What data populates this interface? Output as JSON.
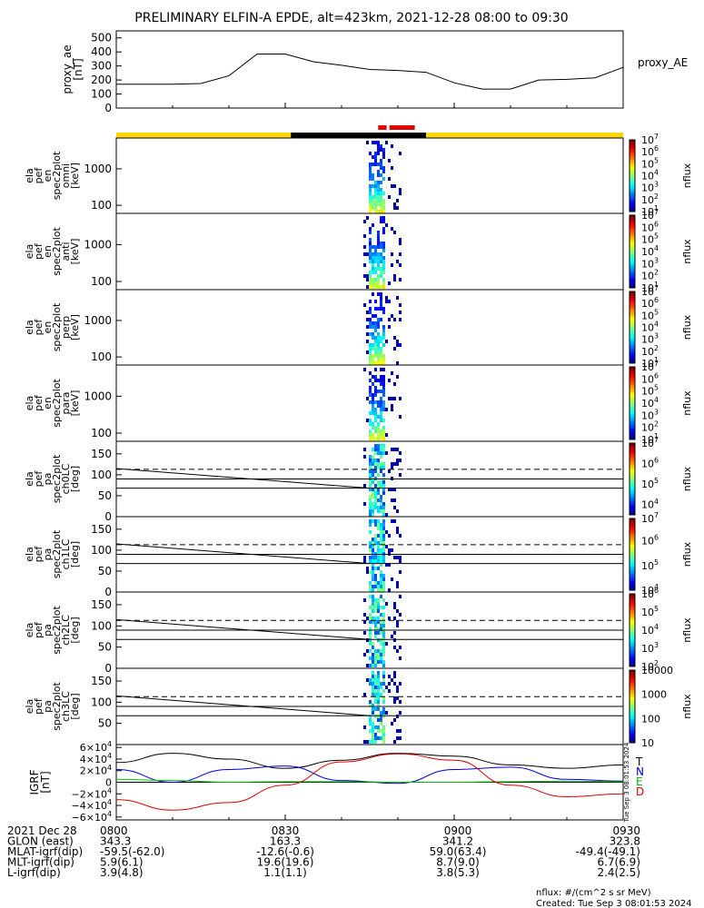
{
  "title": "PRELIMINARY ELFIN-A EPDE, alt=423km, 2021-12-28 08:00 to 09:30",
  "colors": {
    "black": "#000000",
    "red": "#e00000",
    "blue": "#0000e0",
    "green": "#00c000",
    "yellow": "#ffd700"
  },
  "chart_data": [
    {
      "type": "line",
      "panel": "proxy_ae",
      "ylabel": [
        "proxy_ae",
        "[nT]"
      ],
      "legend": "proxy_AE",
      "ylim": [
        0,
        550
      ],
      "yticks": [
        "0",
        "100",
        "200",
        "300",
        "400",
        "500"
      ],
      "ytick_values": [
        0,
        100,
        200,
        300,
        400,
        500
      ],
      "x": [
        0,
        10,
        15,
        20,
        25,
        30,
        35,
        40,
        45,
        50,
        55,
        60,
        65,
        70,
        75,
        80,
        85,
        90
      ],
      "values": [
        170,
        170,
        175,
        230,
        385,
        385,
        330,
        305,
        275,
        268,
        255,
        180,
        135,
        135,
        200,
        205,
        215,
        290
      ]
    },
    {
      "type": "bar",
      "panel": "science_zone_bar",
      "segments": [
        {
          "start": 0,
          "end": 31,
          "color": "#ffd700"
        },
        {
          "start": 31,
          "end": 55,
          "color": "#000000"
        },
        {
          "start": 55,
          "end": 90,
          "color": "#ffd700"
        }
      ],
      "science_markers": [
        {
          "start": 46.5,
          "end": 48.0
        },
        {
          "start": 48.5,
          "end": 53.0
        }
      ]
    },
    {
      "type": "heatmap",
      "panel": "omni",
      "ylabel": [
        "ela",
        "pef",
        "en",
        "spec2plot",
        "omni",
        "[keV]"
      ],
      "yscale": "log",
      "ylim": [
        60,
        7000
      ],
      "yticks": [
        "100",
        "1000"
      ],
      "ytick_values": [
        100,
        1000
      ],
      "colorbar": {
        "label": "nflux",
        "tick_values": [
          1,
          2,
          3,
          4,
          5,
          6,
          7
        ],
        "ticks": [
          "10",
          "10",
          "10",
          "10",
          "10",
          "10",
          "10"
        ],
        "exponents": [
          "1",
          "2",
          "3",
          "4",
          "5",
          "6",
          "7"
        ]
      }
    },
    {
      "type": "heatmap",
      "panel": "anti",
      "ylabel": [
        "ela",
        "pef",
        "en",
        "spec2plot",
        "anti",
        "[keV]"
      ],
      "yscale": "log",
      "ylim": [
        60,
        7000
      ],
      "yticks": [
        "100",
        "1000"
      ],
      "ytick_values": [
        100,
        1000
      ],
      "colorbar": {
        "label": "nflux",
        "tick_values": [
          1,
          2,
          3,
          4,
          5,
          6,
          7
        ],
        "ticks": [
          "10",
          "10",
          "10",
          "10",
          "10",
          "10",
          "10"
        ],
        "exponents": [
          "1",
          "2",
          "3",
          "4",
          "5",
          "6",
          "7"
        ]
      }
    },
    {
      "type": "heatmap",
      "panel": "perp",
      "ylabel": [
        "ela",
        "pef",
        "en",
        "spec2plot",
        "perp",
        "[keV]"
      ],
      "yscale": "log",
      "ylim": [
        60,
        7000
      ],
      "yticks": [
        "100",
        "1000"
      ],
      "ytick_values": [
        100,
        1000
      ],
      "colorbar": {
        "label": "nflux",
        "tick_values": [
          1,
          2,
          3,
          4,
          5,
          6,
          7
        ],
        "ticks": [
          "10",
          "10",
          "10",
          "10",
          "10",
          "10",
          "10"
        ],
        "exponents": [
          "1",
          "2",
          "3",
          "4",
          "5",
          "6",
          "7"
        ]
      }
    },
    {
      "type": "heatmap",
      "panel": "para",
      "ylabel": [
        "ela",
        "pef",
        "en",
        "spec2plot",
        "para",
        "[keV]"
      ],
      "yscale": "log",
      "ylim": [
        60,
        7000
      ],
      "yticks": [
        "100",
        "1000"
      ],
      "ytick_values": [
        100,
        1000
      ],
      "colorbar": {
        "label": "nflux",
        "tick_values": [
          1,
          2,
          3,
          4,
          5,
          6,
          7
        ],
        "ticks": [
          "10",
          "10",
          "10",
          "10",
          "10",
          "10",
          "10"
        ],
        "exponents": [
          "1",
          "2",
          "3",
          "4",
          "5",
          "6",
          "7"
        ]
      }
    },
    {
      "type": "heatmap",
      "panel": "ch0LC",
      "ylabel": [
        "ela",
        "pef",
        "pa",
        "spec2plot",
        "ch0LC",
        "[deg]"
      ],
      "ylim": [
        0,
        180
      ],
      "yticks": [
        "0",
        "50",
        "100",
        "150"
      ],
      "ytick_values": [
        0,
        50,
        100,
        150
      ],
      "colorbar": {
        "label": "nflux",
        "tick_values": [
          3.5,
          4,
          5,
          6,
          7
        ],
        "ticks": [
          "",
          "10",
          "10",
          "10",
          "10"
        ],
        "exponents": [
          "",
          "4",
          "5",
          "6",
          "7"
        ]
      }
    },
    {
      "type": "heatmap",
      "panel": "ch1LC",
      "ylabel": [
        "ela",
        "pef",
        "pa",
        "spec2plot",
        "ch1LC",
        "[deg]"
      ],
      "ylim": [
        0,
        180
      ],
      "yticks": [
        "0",
        "50",
        "100",
        "150"
      ],
      "ytick_values": [
        0,
        50,
        100,
        150
      ],
      "colorbar": {
        "label": "nflux",
        "tick_values": [
          4,
          5,
          6,
          6.9
        ],
        "ticks": [
          "10",
          "10",
          "10",
          "10"
        ],
        "exponents": [
          "4",
          "5",
          "6",
          "7"
        ]
      }
    },
    {
      "type": "heatmap",
      "panel": "ch2LC",
      "ylabel": [
        "ela",
        "pef",
        "pa",
        "spec2plot",
        "ch2LC",
        "[deg]"
      ],
      "ylim": [
        0,
        180
      ],
      "yticks": [
        "0",
        "50",
        "100",
        "150"
      ],
      "ytick_values": [
        0,
        50,
        100,
        150
      ],
      "colorbar": {
        "label": "nflux",
        "tick_values": [
          2,
          3,
          4,
          5,
          6
        ],
        "ticks": [
          "10",
          "10",
          "10",
          "10",
          "10"
        ],
        "exponents": [
          "2",
          "3",
          "4",
          "5",
          "6"
        ]
      }
    },
    {
      "type": "heatmap",
      "panel": "ch3LC",
      "ylabel": [
        "ela",
        "pef",
        "pa",
        "spec2plot",
        "ch3LC",
        "[deg]"
      ],
      "ylim": [
        0,
        180
      ],
      "yticks": [
        "50",
        "100",
        "150"
      ],
      "ytick_values": [
        50,
        100,
        150
      ],
      "colorbar": {
        "label": "nflux",
        "tick_values": [
          1,
          2,
          3,
          4
        ],
        "ticks": [
          "10",
          "100",
          "1000",
          "10000"
        ],
        "exponents": [
          "",
          "",
          "",
          ""
        ]
      }
    },
    {
      "type": "line",
      "panel": "igrf",
      "ylabel": [
        "IGRF",
        "[nT]"
      ],
      "ylim": [
        -65000,
        65000
      ],
      "yticks": [
        "6×10",
        "4×10",
        "2×10",
        "0",
        "−2×10",
        "−4×10",
        "−6×10"
      ],
      "ytick_exponents": [
        "4",
        "4",
        "4",
        "",
        "4",
        "4",
        "4"
      ],
      "ytick_values": [
        60000,
        40000,
        20000,
        0,
        -20000,
        -40000,
        -60000
      ],
      "side_text": "Tue Sep 3 08:01:53 2024",
      "series": [
        {
          "name": "T",
          "color": "#000000",
          "x": [
            0,
            10,
            20,
            30,
            40,
            50,
            60,
            70,
            80,
            90
          ],
          "values": [
            34000,
            50000,
            40000,
            24000,
            38000,
            50000,
            45000,
            30000,
            24000,
            30000
          ]
        },
        {
          "name": "N",
          "color": "#0000e0",
          "x": [
            0,
            10,
            20,
            30,
            40,
            50,
            60,
            70,
            80,
            90
          ],
          "values": [
            22000,
            0,
            22000,
            28000,
            3000,
            -2000,
            22000,
            26000,
            5000,
            2000
          ]
        },
        {
          "name": "E",
          "color": "#00c000",
          "x": [
            0,
            10,
            20,
            30,
            40,
            50,
            60,
            70,
            80,
            90
          ],
          "values": [
            5000,
            3000,
            0,
            1000,
            1000,
            0,
            0,
            1000,
            2000,
            1000
          ]
        },
        {
          "name": "D",
          "color": "#e00000",
          "x": [
            0,
            10,
            20,
            30,
            40,
            50,
            60,
            70,
            80,
            90
          ],
          "values": [
            -30000,
            -48000,
            -35000,
            -5000,
            35000,
            49000,
            38000,
            -5000,
            -25000,
            -20000
          ]
        }
      ]
    }
  ],
  "time_axis": {
    "ticks": [
      "0800",
      "0830",
      "0900",
      "0930"
    ],
    "tick_minutes": [
      0,
      30,
      60,
      90
    ],
    "rows": [
      {
        "label": "2021 Dec 28",
        "values": [
          "0800",
          "0830",
          "0900",
          "0930"
        ]
      },
      {
        "label": "GLON (east)",
        "values": [
          "343.3",
          "163.3",
          "341.2",
          "323.8"
        ]
      },
      {
        "label": "MLAT-igrf(dip)",
        "values": [
          "-59.5(-62.0)",
          "-12.6(-0.6)",
          "59.0(63.4)",
          "-49.4(-49.1)"
        ]
      },
      {
        "label": "MLT-igrf(dip)",
        "values": [
          "5.9(6.1)",
          "19.6(19.6)",
          "8.7(9.0)",
          "6.7(6.9)"
        ]
      },
      {
        "label": "L-igrf(dip)",
        "values": [
          "3.9(4.8)",
          "1.1(1.1)",
          "3.8(5.3)",
          "2.4(2.5)"
        ]
      }
    ]
  },
  "footer": {
    "units": "nflux: #/(cm^2 s sr MeV)",
    "created": "Created: Tue Sep  3 08:01:53 2024"
  }
}
